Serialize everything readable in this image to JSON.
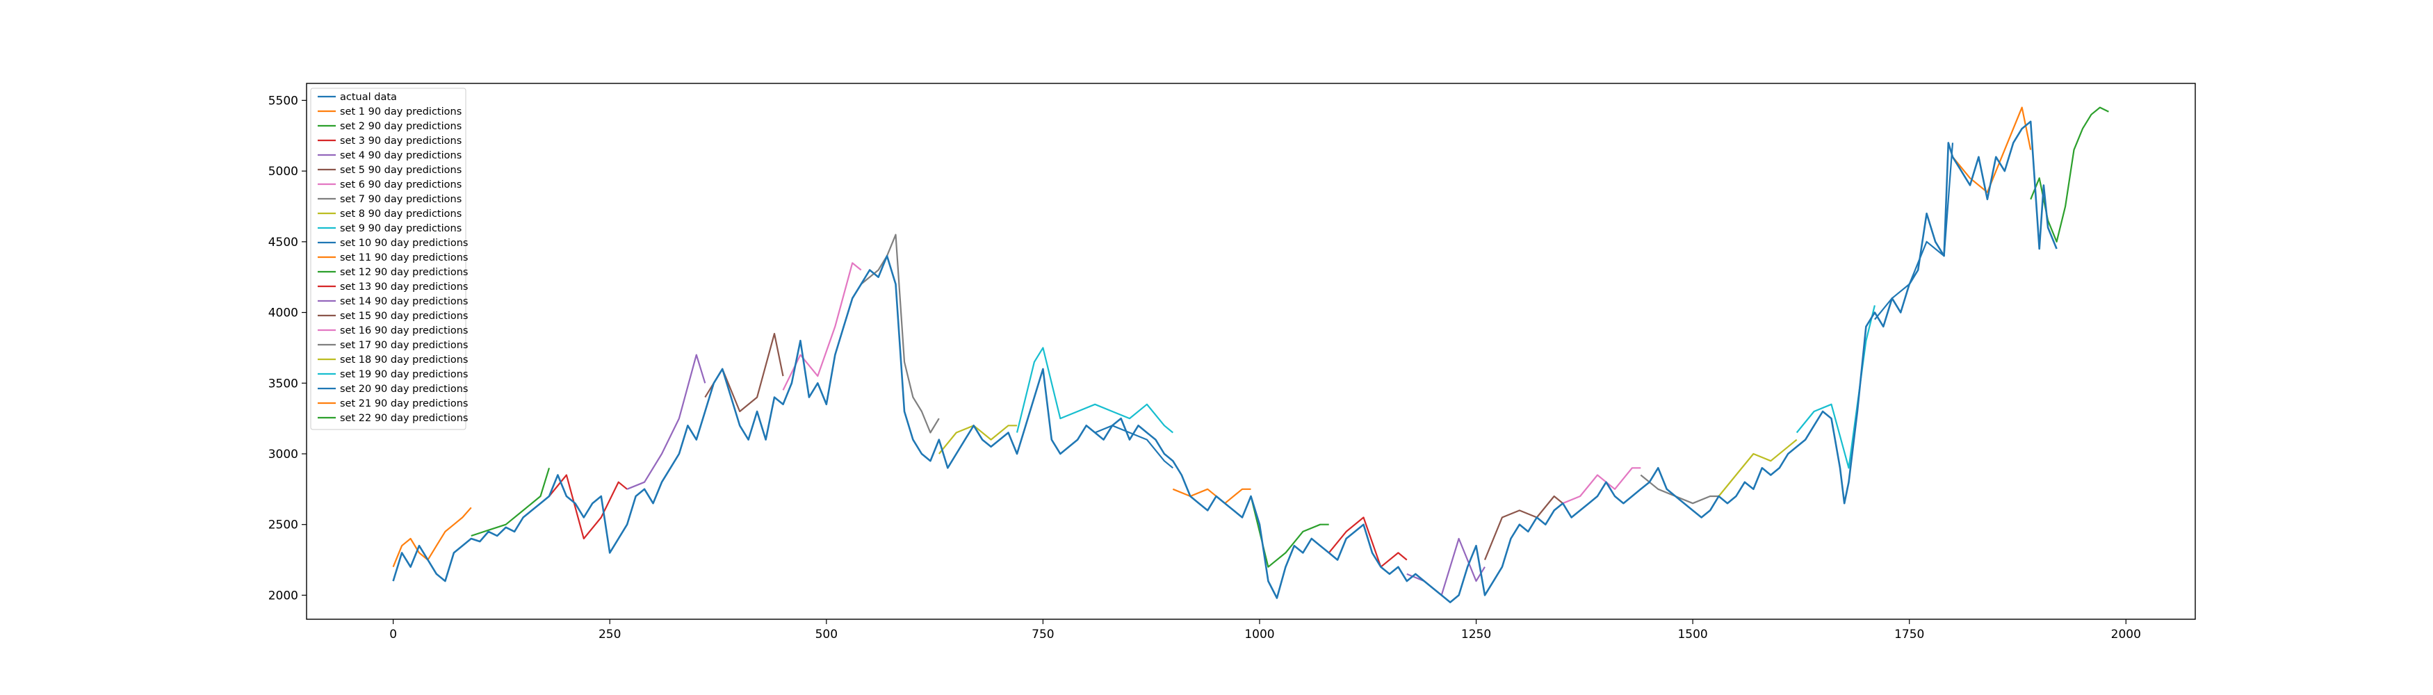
{
  "chart_data": {
    "type": "line",
    "title": "",
    "xlabel": "",
    "ylabel": "",
    "xlim": [
      -100,
      2080
    ],
    "ylim": [
      1830,
      5620
    ],
    "x_ticks": [
      0,
      250,
      500,
      750,
      1000,
      1250,
      1500,
      1750,
      2000
    ],
    "y_ticks": [
      2000,
      2500,
      3000,
      3500,
      4000,
      4500,
      5000,
      5500
    ],
    "grid": false,
    "legend_position": "top-left",
    "actual_series": {
      "name": "actual data",
      "color": "#1f77b4",
      "x": [
        0,
        10,
        20,
        30,
        40,
        50,
        60,
        70,
        80,
        90,
        100,
        110,
        120,
        130,
        140,
        150,
        160,
        170,
        180,
        190,
        200,
        210,
        220,
        230,
        240,
        250,
        260,
        270,
        280,
        290,
        300,
        310,
        320,
        330,
        340,
        350,
        360,
        370,
        380,
        390,
        400,
        410,
        420,
        430,
        440,
        450,
        460,
        470,
        480,
        490,
        500,
        510,
        520,
        530,
        540,
        550,
        560,
        570,
        580,
        590,
        600,
        610,
        620,
        630,
        640,
        650,
        660,
        670,
        680,
        690,
        700,
        710,
        720,
        730,
        740,
        750,
        760,
        770,
        780,
        790,
        800,
        810,
        820,
        830,
        840,
        850,
        860,
        870,
        880,
        890,
        900,
        910,
        920,
        930,
        940,
        950,
        960,
        970,
        980,
        990,
        1000,
        1010,
        1020,
        1030,
        1040,
        1050,
        1060,
        1070,
        1080,
        1090,
        1100,
        1110,
        1120,
        1130,
        1140,
        1150,
        1160,
        1170,
        1180,
        1190,
        1200,
        1210,
        1220,
        1230,
        1240,
        1250,
        1260,
        1270,
        1280,
        1290,
        1300,
        1310,
        1320,
        1330,
        1340,
        1350,
        1360,
        1370,
        1380,
        1390,
        1400,
        1410,
        1420,
        1430,
        1440,
        1450,
        1460,
        1470,
        1480,
        1490,
        1500,
        1510,
        1520,
        1530,
        1540,
        1550,
        1560,
        1570,
        1580,
        1590,
        1600,
        1610,
        1620,
        1630,
        1640,
        1650,
        1660,
        1670,
        1675,
        1680,
        1690,
        1700,
        1710,
        1720,
        1730,
        1740,
        1750,
        1760,
        1770,
        1780,
        1790,
        1795,
        1800,
        1810,
        1820,
        1830,
        1840,
        1850,
        1860,
        1870,
        1880,
        1890,
        1900,
        1905,
        1910,
        1920
      ],
      "y": [
        2100,
        2300,
        2200,
        2350,
        2250,
        2150,
        2100,
        2300,
        2350,
        2400,
        2380,
        2450,
        2420,
        2480,
        2450,
        2550,
        2600,
        2650,
        2700,
        2850,
        2700,
        2650,
        2550,
        2650,
        2700,
        2300,
        2400,
        2500,
        2700,
        2750,
        2650,
        2800,
        2900,
        3000,
        3200,
        3100,
        3300,
        3500,
        3600,
        3400,
        3200,
        3100,
        3300,
        3100,
        3400,
        3350,
        3500,
        3800,
        3400,
        3500,
        3350,
        3700,
        3900,
        4100,
        4200,
        4300,
        4250,
        4400,
        4200,
        3300,
        3100,
        3000,
        2950,
        3100,
        2900,
        3000,
        3100,
        3200,
        3100,
        3050,
        3100,
        3150,
        3000,
        3200,
        3400,
        3600,
        3100,
        3000,
        3050,
        3100,
        3200,
        3150,
        3100,
        3200,
        3250,
        3100,
        3200,
        3150,
        3100,
        3000,
        2950,
        2850,
        2700,
        2650,
        2600,
        2700,
        2650,
        2600,
        2550,
        2700,
        2500,
        2100,
        1980,
        2200,
        2350,
        2300,
        2400,
        2350,
        2300,
        2250,
        2400,
        2450,
        2500,
        2300,
        2200,
        2150,
        2200,
        2100,
        2150,
        2100,
        2050,
        2000,
        1950,
        2000,
        2200,
        2350,
        2000,
        2100,
        2200,
        2400,
        2500,
        2450,
        2550,
        2500,
        2600,
        2650,
        2550,
        2600,
        2650,
        2700,
        2800,
        2700,
        2650,
        2700,
        2750,
        2800,
        2900,
        2750,
        2700,
        2650,
        2600,
        2550,
        2600,
        2700,
        2650,
        2700,
        2800,
        2750,
        2900,
        2850,
        2900,
        3000,
        3050,
        3100,
        3200,
        3300,
        3250,
        2900,
        2650,
        2800,
        3300,
        3900,
        4000,
        3900,
        4100,
        4000,
        4200,
        4300,
        4700,
        4500,
        4400,
        5200,
        5100,
        5000,
        4900,
        5100,
        4800,
        5100,
        5000,
        5200,
        5300,
        5350,
        4450,
        4900,
        4600,
        4450
      ]
    },
    "series": [
      {
        "name": "set 1 90 day predictions",
        "color": "#ff7f0e",
        "x": [
          0,
          10,
          20,
          30,
          40,
          50,
          60,
          70,
          80,
          90
        ],
        "y": [
          2200,
          2350,
          2400,
          2300,
          2250,
          2350,
          2450,
          2500,
          2550,
          2620
        ]
      },
      {
        "name": "set 2 90 day predictions",
        "color": "#2ca02c",
        "x": [
          90,
          110,
          130,
          150,
          170,
          180
        ],
        "y": [
          2420,
          2460,
          2500,
          2600,
          2700,
          2900
        ]
      },
      {
        "name": "set 3 90 day predictions",
        "color": "#d62728",
        "x": [
          180,
          200,
          220,
          240,
          260,
          270
        ],
        "y": [
          2700,
          2850,
          2400,
          2550,
          2800,
          2750
        ]
      },
      {
        "name": "set 4 90 day predictions",
        "color": "#9467bd",
        "x": [
          270,
          290,
          310,
          330,
          350,
          360
        ],
        "y": [
          2750,
          2800,
          3000,
          3250,
          3700,
          3500
        ]
      },
      {
        "name": "set 5 90 day predictions",
        "color": "#8c564b",
        "x": [
          360,
          380,
          400,
          420,
          440,
          450
        ],
        "y": [
          3400,
          3600,
          3300,
          3400,
          3850,
          3550
        ]
      },
      {
        "name": "set 6 90 day predictions",
        "color": "#e377c2",
        "x": [
          450,
          470,
          490,
          510,
          530,
          540
        ],
        "y": [
          3450,
          3700,
          3550,
          3900,
          4350,
          4300
        ]
      },
      {
        "name": "set 7 90 day predictions",
        "color": "#7f7f7f",
        "x": [
          540,
          560,
          570,
          580,
          590,
          600,
          610,
          620,
          630
        ],
        "y": [
          4200,
          4300,
          4400,
          4550,
          3650,
          3400,
          3300,
          3150,
          3250
        ]
      },
      {
        "name": "set 8 90 day predictions",
        "color": "#bcbd22",
        "x": [
          630,
          650,
          670,
          690,
          710,
          720
        ],
        "y": [
          3000,
          3150,
          3200,
          3100,
          3200,
          3200
        ]
      },
      {
        "name": "set 9 90 day predictions",
        "color": "#17becf",
        "x": [
          720,
          740,
          750,
          770,
          790,
          810,
          830,
          850,
          870,
          890,
          900
        ],
        "y": [
          3150,
          3650,
          3750,
          3250,
          3300,
          3350,
          3300,
          3250,
          3350,
          3200,
          3150
        ]
      },
      {
        "name": "set 10 90 day predictions",
        "color": "#1f77b4",
        "x": [
          810,
          830,
          850,
          870,
          890,
          900
        ],
        "y": [
          3150,
          3200,
          3150,
          3100,
          2950,
          2900
        ]
      },
      {
        "name": "set 11 90 day predictions",
        "color": "#ff7f0e",
        "x": [
          900,
          920,
          940,
          960,
          980,
          990
        ],
        "y": [
          2750,
          2700,
          2750,
          2650,
          2750,
          2750
        ]
      },
      {
        "name": "set 12 90 day predictions",
        "color": "#2ca02c",
        "x": [
          990,
          1010,
          1030,
          1050,
          1070,
          1080
        ],
        "y": [
          2700,
          2200,
          2300,
          2450,
          2500,
          2500
        ]
      },
      {
        "name": "set 13 90 day predictions",
        "color": "#d62728",
        "x": [
          1080,
          1100,
          1120,
          1140,
          1160,
          1170
        ],
        "y": [
          2300,
          2450,
          2550,
          2200,
          2300,
          2250
        ]
      },
      {
        "name": "set 14 90 day predictions",
        "color": "#9467bd",
        "x": [
          1170,
          1190,
          1210,
          1230,
          1250,
          1260
        ],
        "y": [
          2150,
          2100,
          2000,
          2400,
          2100,
          2200
        ]
      },
      {
        "name": "set 15 90 day predictions",
        "color": "#8c564b",
        "x": [
          1260,
          1280,
          1300,
          1320,
          1340,
          1350
        ],
        "y": [
          2250,
          2550,
          2600,
          2550,
          2700,
          2650
        ]
      },
      {
        "name": "set 16 90 day predictions",
        "color": "#e377c2",
        "x": [
          1350,
          1370,
          1390,
          1410,
          1430,
          1440
        ],
        "y": [
          2650,
          2700,
          2850,
          2750,
          2900,
          2900
        ]
      },
      {
        "name": "set 17 90 day predictions",
        "color": "#7f7f7f",
        "x": [
          1440,
          1460,
          1480,
          1500,
          1520,
          1530
        ],
        "y": [
          2850,
          2750,
          2700,
          2650,
          2700,
          2700
        ]
      },
      {
        "name": "set 18 90 day predictions",
        "color": "#bcbd22",
        "x": [
          1530,
          1550,
          1570,
          1590,
          1610,
          1620
        ],
        "y": [
          2700,
          2850,
          3000,
          2950,
          3050,
          3100
        ]
      },
      {
        "name": "set 19 90 day predictions",
        "color": "#17becf",
        "x": [
          1620,
          1640,
          1660,
          1680,
          1700,
          1710
        ],
        "y": [
          3150,
          3300,
          3350,
          2900,
          3800,
          4050
        ]
      },
      {
        "name": "set 20 90 day predictions",
        "color": "#1f77b4",
        "x": [
          1710,
          1730,
          1750,
          1770,
          1790,
          1800
        ],
        "y": [
          3950,
          4100,
          4200,
          4500,
          4400,
          5200
        ]
      },
      {
        "name": "set 21 90 day predictions",
        "color": "#ff7f0e",
        "x": [
          1800,
          1820,
          1840,
          1860,
          1880,
          1890
        ],
        "y": [
          5100,
          4950,
          4850,
          5150,
          5450,
          5150
        ]
      },
      {
        "name": "set 22 90 day predictions",
        "color": "#2ca02c",
        "x": [
          1890,
          1900,
          1910,
          1920,
          1930,
          1940,
          1950,
          1960,
          1970,
          1980
        ],
        "y": [
          4800,
          4950,
          4650,
          4500,
          4750,
          5150,
          5300,
          5400,
          5450,
          5420
        ]
      }
    ]
  }
}
